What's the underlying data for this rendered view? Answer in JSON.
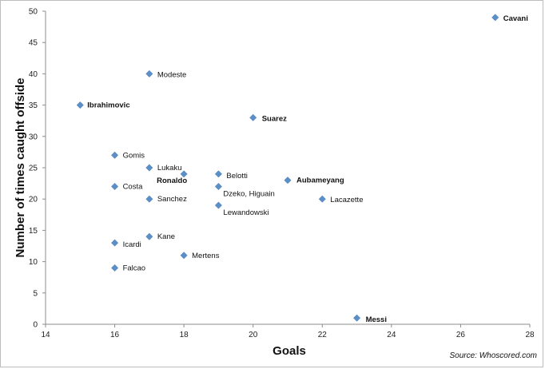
{
  "chart_data": {
    "type": "scatter",
    "xlabel": "Goals",
    "ylabel": "Number of times caught offside",
    "xlim": [
      14,
      28
    ],
    "ylim": [
      0,
      50
    ],
    "xticks": [
      "14",
      "16",
      "18",
      "20",
      "22",
      "24",
      "26",
      "28"
    ],
    "yticks": [
      "0",
      "5",
      "10",
      "15",
      "20",
      "25",
      "30",
      "35",
      "40",
      "45",
      "50"
    ],
    "grid": false,
    "marker_color": "#5b8fc7",
    "points": [
      {
        "label": "Cavani",
        "x": 27,
        "y": 49,
        "bold": true
      },
      {
        "label": "Modeste",
        "x": 17,
        "y": 40,
        "bold": false
      },
      {
        "label": "Ibrahimovic",
        "x": 15,
        "y": 35,
        "bold": true
      },
      {
        "label": "Suarez",
        "x": 20,
        "y": 33,
        "bold": true
      },
      {
        "label": "Gomis",
        "x": 16,
        "y": 27,
        "bold": false
      },
      {
        "label": "Lukaku",
        "x": 17,
        "y": 25,
        "bold": false
      },
      {
        "label": "Ronaldo",
        "x": 18,
        "y": 24,
        "bold": true
      },
      {
        "label": "Belotti",
        "x": 19,
        "y": 24,
        "bold": false
      },
      {
        "label": "Aubameyang",
        "x": 21,
        "y": 23,
        "bold": true
      },
      {
        "label": "Costa",
        "x": 16,
        "y": 22,
        "bold": false
      },
      {
        "label": "Dzeko, Higuain",
        "x": 19,
        "y": 22,
        "bold": false
      },
      {
        "label": "Sanchez",
        "x": 17,
        "y": 20,
        "bold": false
      },
      {
        "label": "Lacazette",
        "x": 22,
        "y": 20,
        "bold": false
      },
      {
        "label": "Lewandowski",
        "x": 19,
        "y": 19,
        "bold": false
      },
      {
        "label": "Kane",
        "x": 17,
        "y": 14,
        "bold": false
      },
      {
        "label": "Icardi",
        "x": 16,
        "y": 13,
        "bold": false
      },
      {
        "label": "Mertens",
        "x": 18,
        "y": 11,
        "bold": false
      },
      {
        "label": "Falcao",
        "x": 16,
        "y": 9,
        "bold": false
      },
      {
        "label": "Messi",
        "x": 23,
        "y": 1,
        "bold": true
      }
    ]
  },
  "source_note": "Source: Whoscored.com"
}
